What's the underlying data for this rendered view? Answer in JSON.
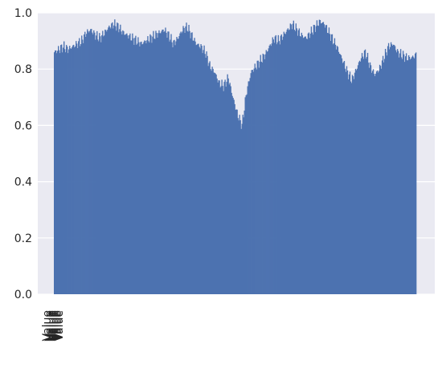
{
  "chart_data": {
    "type": "bar",
    "bar_count": 450,
    "ylim": [
      0,
      1.0
    ],
    "yticks": [
      0.0,
      0.2,
      0.4,
      0.6,
      0.8,
      1.0
    ],
    "ytick_labels": [
      "0.0",
      "0.2",
      "0.4",
      "0.6",
      "0.8",
      "1.0"
    ],
    "xtick_label": "Value",
    "grid": true,
    "legend": false,
    "title": "",
    "xlabel": "",
    "ylabel": "",
    "profile_samples": [
      0.86,
      0.87,
      0.88,
      0.87,
      0.88,
      0.89,
      0.9,
      0.93,
      0.94,
      0.92,
      0.91,
      0.93,
      0.95,
      0.96,
      0.95,
      0.93,
      0.92,
      0.91,
      0.9,
      0.89,
      0.9,
      0.91,
      0.92,
      0.93,
      0.94,
      0.92,
      0.89,
      0.91,
      0.94,
      0.95,
      0.92,
      0.89,
      0.88,
      0.86,
      0.81,
      0.79,
      0.75,
      0.74,
      0.77,
      0.7,
      0.64,
      0.6,
      0.72,
      0.79,
      0.81,
      0.83,
      0.85,
      0.88,
      0.91,
      0.9,
      0.92,
      0.94,
      0.96,
      0.94,
      0.92,
      0.91,
      0.93,
      0.95,
      0.97,
      0.96,
      0.93,
      0.9,
      0.87,
      0.83,
      0.79,
      0.76,
      0.8,
      0.84,
      0.86,
      0.81,
      0.78,
      0.8,
      0.84,
      0.88,
      0.89,
      0.86,
      0.85,
      0.84,
      0.84,
      0.85
    ],
    "color": "#4c72b0",
    "axes_background": "#eaeaf2",
    "grid_color": "#ffffff",
    "text_color": "#262626"
  }
}
